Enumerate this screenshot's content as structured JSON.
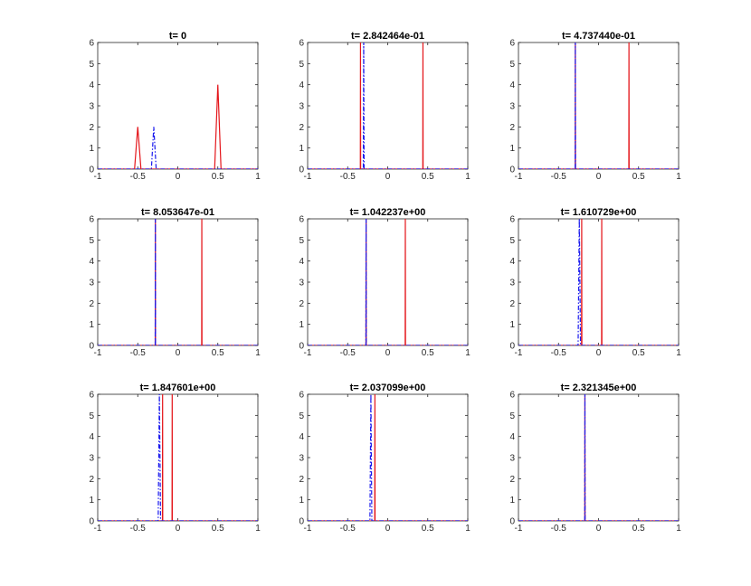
{
  "figure": {
    "background": "#ffffff"
  },
  "colors": {
    "red_solid": "#e4161b",
    "blue_dashdot": "#1a1aee",
    "axes": "#262626"
  },
  "chart_data": [
    {
      "type": "line",
      "title": "t= 0",
      "xlim": [
        -1,
        1
      ],
      "ylim": [
        0,
        6
      ],
      "xticks": [
        "-1",
        "-0.5",
        "0",
        "0.5",
        "1"
      ],
      "yticks": [
        "0",
        "1",
        "2",
        "3",
        "4",
        "5",
        "6"
      ],
      "series": [
        {
          "style": "red-solid",
          "x": [
            -1,
            -0.54,
            -0.5,
            -0.46,
            0.46,
            0.5,
            0.54,
            1
          ],
          "y": [
            0,
            0,
            2,
            0,
            0,
            4,
            0,
            0
          ]
        },
        {
          "style": "blue-dashdot",
          "x": [
            -1,
            -0.33,
            -0.3,
            -0.27,
            1
          ],
          "y": [
            0,
            0,
            2,
            0,
            0
          ]
        }
      ]
    },
    {
      "type": "line",
      "title": "t= 2.842464e-01",
      "xlim": [
        -1,
        1
      ],
      "ylim": [
        0,
        6
      ],
      "xticks": [
        "-1",
        "-0.5",
        "0",
        "0.5",
        "1"
      ],
      "yticks": [
        "0",
        "1",
        "2",
        "3",
        "4",
        "5",
        "6"
      ],
      "series": [
        {
          "style": "red-solid",
          "x": [
            -1,
            -0.342,
            -0.34,
            -0.338,
            0.438,
            0.44,
            0.442,
            1
          ],
          "y": [
            0,
            0,
            6,
            0,
            0,
            6,
            0,
            0
          ]
        },
        {
          "style": "blue-dashdot",
          "x": [
            -1,
            -0.305,
            -0.3,
            -0.295,
            1
          ],
          "y": [
            0,
            0,
            6,
            0,
            0
          ]
        }
      ]
    },
    {
      "type": "line",
      "title": "t= 4.737440e-01",
      "xlim": [
        -1,
        1
      ],
      "ylim": [
        0,
        6
      ],
      "xticks": [
        "-1",
        "-0.5",
        "0",
        "0.5",
        "1"
      ],
      "yticks": [
        "0",
        "1",
        "2",
        "3",
        "4",
        "5",
        "6"
      ],
      "series": [
        {
          "style": "red-solid",
          "x": [
            -1,
            -0.292,
            -0.29,
            -0.288,
            0.378,
            0.38,
            0.382,
            1
          ],
          "y": [
            0,
            0,
            6,
            0,
            0,
            6,
            0,
            0
          ]
        },
        {
          "style": "blue-dashdot",
          "x": [
            -1,
            -0.292,
            -0.29,
            -0.288,
            1
          ],
          "y": [
            0,
            0,
            6,
            0,
            0
          ]
        }
      ]
    },
    {
      "type": "line",
      "title": "t= 8.053647e-01",
      "xlim": [
        -1,
        1
      ],
      "ylim": [
        0,
        6
      ],
      "xticks": [
        "-1",
        "-0.5",
        "0",
        "0.5",
        "1"
      ],
      "yticks": [
        "0",
        "1",
        "2",
        "3",
        "4",
        "5",
        "6"
      ],
      "series": [
        {
          "style": "red-solid",
          "x": [
            -1,
            -0.282,
            -0.28,
            -0.278,
            0.298,
            0.3,
            0.302,
            1
          ],
          "y": [
            0,
            0,
            6,
            0,
            0,
            6,
            0,
            0
          ]
        },
        {
          "style": "blue-dashdot",
          "x": [
            -1,
            -0.282,
            -0.28,
            -0.278,
            1
          ],
          "y": [
            0,
            0,
            6,
            0,
            0
          ]
        }
      ]
    },
    {
      "type": "line",
      "title": "t= 1.042237e+00",
      "xlim": [
        -1,
        1
      ],
      "ylim": [
        0,
        6
      ],
      "xticks": [
        "-1",
        "-0.5",
        "0",
        "0.5",
        "1"
      ],
      "yticks": [
        "0",
        "1",
        "2",
        "3",
        "4",
        "5",
        "6"
      ],
      "series": [
        {
          "style": "red-solid",
          "x": [
            -1,
            -0.272,
            -0.27,
            -0.268,
            0.218,
            0.22,
            0.222,
            1
          ],
          "y": [
            0,
            0,
            6,
            0,
            0,
            6,
            0,
            0
          ]
        },
        {
          "style": "blue-dashdot",
          "x": [
            -1,
            -0.272,
            -0.27,
            -0.268,
            1
          ],
          "y": [
            0,
            0,
            6,
            0,
            0
          ]
        }
      ]
    },
    {
      "type": "line",
      "title": "t= 1.610729e+00",
      "xlim": [
        -1,
        1
      ],
      "ylim": [
        0,
        6
      ],
      "xticks": [
        "-1",
        "-0.5",
        "0",
        "0.5",
        "1"
      ],
      "yticks": [
        "0",
        "1",
        "2",
        "3",
        "4",
        "5",
        "6"
      ],
      "series": [
        {
          "style": "red-solid",
          "x": [
            -1,
            -0.212,
            -0.21,
            -0.208,
            0.038,
            0.04,
            0.042,
            1
          ],
          "y": [
            0,
            0,
            6,
            0,
            0,
            6,
            0,
            0
          ]
        },
        {
          "style": "blue-dashdot",
          "x": [
            -1,
            -0.255,
            -0.24,
            -0.225,
            1
          ],
          "y": [
            0,
            0,
            6,
            0,
            0
          ]
        }
      ]
    },
    {
      "type": "line",
      "title": "t= 1.847601e+00",
      "xlim": [
        -1,
        1
      ],
      "ylim": [
        0,
        6
      ],
      "xticks": [
        "-1",
        "-0.5",
        "0",
        "0.5",
        "1"
      ],
      "yticks": [
        "0",
        "1",
        "2",
        "3",
        "4",
        "5",
        "6"
      ],
      "series": [
        {
          "style": "red-solid",
          "x": [
            -1,
            -0.192,
            -0.19,
            -0.188,
            -0.072,
            -0.07,
            -0.068,
            1
          ],
          "y": [
            0,
            0,
            6,
            0,
            0,
            6,
            0,
            0
          ]
        },
        {
          "style": "blue-dashdot",
          "x": [
            -1,
            -0.245,
            -0.23,
            -0.215,
            1
          ],
          "y": [
            0,
            0,
            6,
            0,
            0
          ]
        }
      ]
    },
    {
      "type": "line",
      "title": "t= 2.037099e+00",
      "xlim": [
        -1,
        1
      ],
      "ylim": [
        0,
        6
      ],
      "xticks": [
        "-1",
        "-0.5",
        "0",
        "0.5",
        "1"
      ],
      "yticks": [
        "0",
        "1",
        "2",
        "3",
        "4",
        "5",
        "6"
      ],
      "series": [
        {
          "style": "red-solid",
          "x": [
            -1,
            -0.162,
            -0.16,
            -0.158,
            1
          ],
          "y": [
            0,
            0,
            6,
            0,
            0
          ]
        },
        {
          "style": "blue-dashdot",
          "x": [
            -1,
            -0.222,
            -0.21,
            -0.198,
            1
          ],
          "y": [
            0,
            0,
            6,
            0,
            0
          ]
        }
      ]
    },
    {
      "type": "line",
      "title": "t= 2.321345e+00",
      "xlim": [
        -1,
        1
      ],
      "ylim": [
        0,
        6
      ],
      "xticks": [
        "-1",
        "-0.5",
        "0",
        "0.5",
        "1"
      ],
      "yticks": [
        "0",
        "1",
        "2",
        "3",
        "4",
        "5",
        "6"
      ],
      "series": [
        {
          "style": "red-solid",
          "x": [
            -1,
            -0.172,
            -0.17,
            -0.168,
            1
          ],
          "y": [
            0,
            0,
            6,
            0,
            0
          ]
        },
        {
          "style": "blue-dashdot",
          "x": [
            -1,
            -0.172,
            -0.17,
            -0.168,
            1
          ],
          "y": [
            0,
            0,
            6,
            0,
            0
          ]
        }
      ]
    }
  ]
}
